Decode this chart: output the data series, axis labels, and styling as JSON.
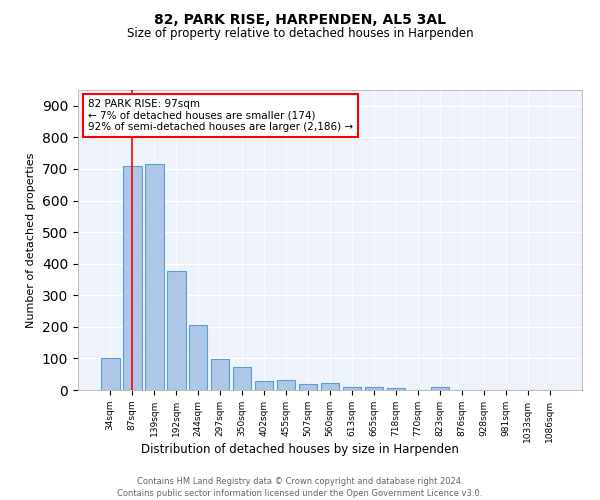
{
  "title1": "82, PARK RISE, HARPENDEN, AL5 3AL",
  "title2": "Size of property relative to detached houses in Harpenden",
  "xlabel": "Distribution of detached houses by size in Harpenden",
  "ylabel": "Number of detached properties",
  "categories": [
    "34sqm",
    "87sqm",
    "139sqm",
    "192sqm",
    "244sqm",
    "297sqm",
    "350sqm",
    "402sqm",
    "455sqm",
    "507sqm",
    "560sqm",
    "613sqm",
    "665sqm",
    "718sqm",
    "770sqm",
    "823sqm",
    "876sqm",
    "928sqm",
    "981sqm",
    "1033sqm",
    "1086sqm"
  ],
  "values": [
    100,
    710,
    715,
    378,
    207,
    97,
    72,
    30,
    32,
    20,
    23,
    10,
    8,
    7,
    0,
    8,
    0,
    0,
    0,
    0,
    0
  ],
  "bar_color": "#aec6e8",
  "bar_edge_color": "#5a9fd4",
  "property_line_x": 1,
  "annotation_text": "82 PARK RISE: 97sqm\n← 7% of detached houses are smaller (174)\n92% of semi-detached houses are larger (2,186) →",
  "footnote1": "Contains HM Land Registry data © Crown copyright and database right 2024.",
  "footnote2": "Contains public sector information licensed under the Open Government Licence v3.0.",
  "bg_color": "#ffffff",
  "plot_bg_color": "#eef2fb",
  "ylim": [
    0,
    950
  ],
  "yticks": [
    0,
    100,
    200,
    300,
    400,
    500,
    600,
    700,
    800,
    900
  ]
}
